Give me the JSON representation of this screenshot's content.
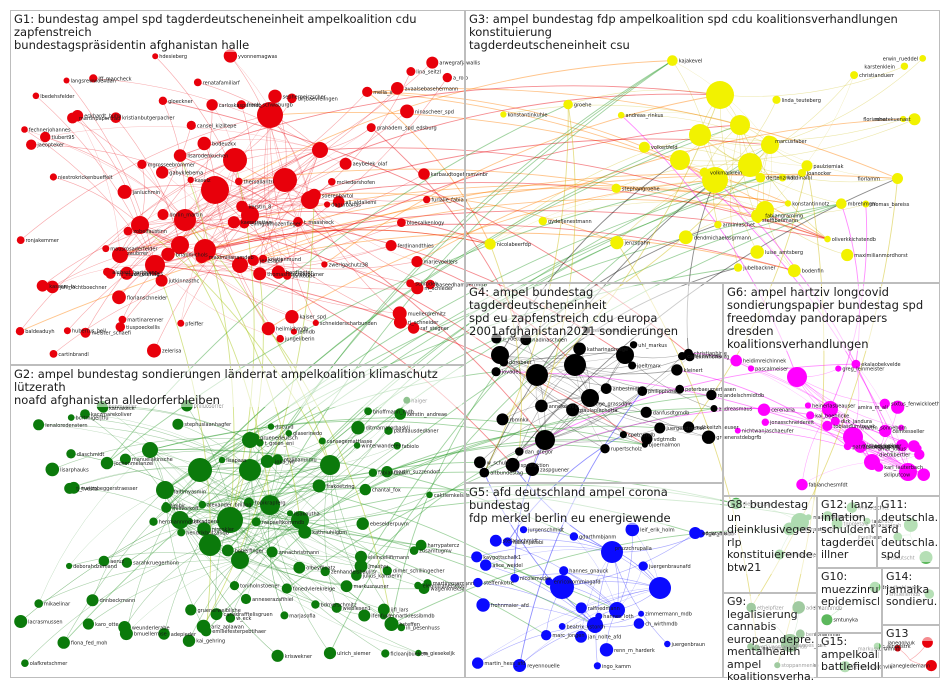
{
  "groups": {
    "g1": {
      "title": "G1: bundestag ampel spd tagderdeutscheneinheit ampelkoalition cdu zapfenstreich\nbundestagspräsidentin afghanistan halle",
      "color": "#e8000b"
    },
    "g2": {
      "title": "G2: ampel bundestag sondierungen länderrat ampelkoalition klimaschutz lützerath\nnoafd afghanistan alledorferbleiben",
      "color": "#0b7a0b"
    },
    "g3": {
      "title": "G3: ampel bundestag fdp ampelkoalition spd cdu koalitionsverhandlungen konstituierung\ntagderdeutscheneinheit csu",
      "color": "#f2f200"
    },
    "g4": {
      "title": "G4: ampel bundestag tagderdeutscheneinheit\nspd eu zapfenstreich cdu europa\n2001afghanistan2021 sondierungen",
      "color": "#000000"
    },
    "g5": {
      "title": "G5: afd deutschland ampel corona bundestag\nfdp merkel berlin eu energiewende",
      "color": "#0a0aff"
    },
    "g6": {
      "title": "G6: ampel hartziv longcovid\nsondierungspapier bundestag spd\nfreedomday pandorapapers dresden\nkoalitionsverhandlungen",
      "color": "#ff00ff"
    },
    "g8": {
      "title": "G8: bundestag\nun\ndieinklusiveges...\nrlp\nkonstituierende...\nbtw21",
      "color": "#4caf50"
    },
    "g9": {
      "title": "G9: legalisierung\ncannabis\neuropeandepre...\nmentalhealth\nampel\nkoalitionsverha...",
      "color": "#2e8b2e"
    },
    "g10": {
      "title": "G10:\nmuezzinruf\nepidemisch...",
      "color": "#5cb85c"
    },
    "g11": {
      "title": "G11:\ndeutschla...\nafd\ndeutschla...\nspd",
      "color": "#5cb85c"
    },
    "g12": {
      "title": "G12: lanz\ninflation\nschuldenb...\ntagderdeu...\nillner",
      "color": "#5cb85c"
    },
    "g13": {
      "title": "G13",
      "color": "#e8000b"
    },
    "g14": {
      "title": "G14:\njamaika\nsondieru...",
      "color": "#5cb85c"
    },
    "g15": {
      "title": "G15:\nampelkoalit...\nbattlefieldb...",
      "color": "#5cb85c"
    }
  },
  "labels": {
    "g1": [
      "baldeaduyh",
      "ml_muentefering",
      "jutkinnasthc",
      "jenzsapd",
      "grahadem_spd_edsburg",
      "zwerlgachutz38",
      "soerenbartol",
      "mella_x",
      "marjevoellers",
      "heilmichmdb",
      "lisarodenkuchen",
      "gloeckner",
      "bodeuzkx",
      "thomashitschlerprimer",
      "tiubert95",
      "thersallantri",
      "lina_seitzl",
      "brianmichols",
      "frank_schwaburgb",
      "mgrosseebrommer",
      "dorlin_martin",
      "tiuspoeckellis",
      "ferdinandthies",
      "kerstin_8",
      "karbaudtogehrsmvinbr",
      "zobelfaustinn",
      "gabyklebema",
      "avaalsebasehermann",
      "niestrokrickenbueffelt",
      "cartinbrandl",
      "dirjbaevielingen",
      "sepherpeirzscher",
      "rj_schneider",
      "schrodeb",
      "fechnerjohannes",
      "ronjakemmer",
      "ali_aldaliemi",
      "martinarenner",
      "pfeiffer",
      "yvonnemagwas",
      "leondb",
      "ninascheer_spd",
      "kristianmund",
      "kristianbutgerpacher",
      "kassem_tv",
      "dagurbahas",
      "hubertus_heil",
      "schneiderscharbunden",
      "muellerdremitz",
      "baseedhampertmdb",
      "dr_pantazis",
      "cansel_kiziltepe",
      "bloecalkenlogy",
      "jankobbe",
      "mcliedershofen",
      "zelerisa",
      "kaiser_spd",
      "mausrosaderfelder",
      "kaerstrotten",
      "furlalie_fabian",
      "carloskasparmdb",
      "evmgrafhozenfleger",
      "aeybelek_olaf",
      "jaeopteker",
      "alebast_hartmann",
      "zaubrrer",
      "johmochtboechner",
      "raf_stegner",
      "arwegrafjawallis",
      "hardtpeter",
      "lbedehsfelder",
      "langsrewwoendan",
      "jungeliberin",
      "eckhardt_huhn",
      "janluchmin",
      "maximilianamdeb",
      "kaselz",
      "florianschneider",
      "meister_schaefi",
      "martinpapertrad",
      "Iff_mancheck",
      "t_maasheck",
      "a_rolo",
      "hdesieberg",
      "renatafamiliarf",
      "m_schleder"
    ],
    "g2": [
      "ariz_aplawan",
      "julius_kanzlerin",
      "milivorkoff",
      "boberfinger",
      "olbeyfiloatz",
      "hsteffen",
      "nirenkler",
      "caktlemkelsda",
      "adepieder",
      "ulrich_siemer",
      "jochenmelanzel",
      "fiona_fed_moh",
      "fonedvlerekreige",
      "emiliefesterpebtihaer",
      "martin_suzzendorf",
      "alexander_brilling",
      "joka_lwl",
      "chantal_fox",
      "paulaausdedlaner",
      "haiger",
      "philuosorrer",
      "fabiolo",
      "eleanoraheiseloer",
      "deborahdzemand",
      "elvincellifirmann",
      "matimbeggerstraesser",
      "harrypatercz",
      "markusrauner",
      "ducuyd",
      "otzlibamnmu",
      "manuelakinsche",
      "marjasofia",
      "kerstin_andreae",
      "gruenerweibliche",
      "ditmarnatorbaskli",
      "w_eck",
      "ijfl_lars",
      "in_pesenhuss",
      "cansegemattiasse",
      "m_giesekeljk",
      "lisarphauks",
      "ficloanjbuekem",
      "kathakeck",
      "gruenedeutsch",
      "lisapaas",
      "lenaloredenstern",
      "carladrafftelisgruen",
      "toniholnstoener",
      "kriswekner",
      "wagenkneksa",
      "winterwanderer",
      "zenhandelsbaulrsr",
      "tobikrapferg",
      "bcrtrnigerjtfu",
      "faltimyasmin",
      "glaserinedo",
      "lacrasmussen",
      "mikaelinar",
      "kai_gehring",
      "olafkretschmer",
      "lisakoutha",
      "dnnbeckmann",
      "weunderlerabe",
      "herrmannmdsch",
      "bmuellerrose",
      "kathriuhilgbm",
      "ifenfuss",
      "martinrosemann",
      "frakoetzing",
      "karo_otte",
      "ebeselderpuvm",
      "bhoffmann_mdb",
      "benmueller",
      "jmastyu",
      "lennartkiessibmdb",
      "raspaeltkornmdb",
      "anneserazafihiel",
      "hendrikbritzandb",
      "bdrnerschmitz",
      "sarahkruegerhonn",
      "zusamtugmv",
      "annachristmann",
      "t_green_eni",
      "tj_tvesta",
      "dimer_schillingecher",
      "timbjr",
      "kaczmarekoliver",
      "stephuslaanhagfer",
      "lexadgeru",
      "fabiandmik",
      "dlaschmidt",
      "aeruz",
      "wieblesen1"
    ],
    "g3": [
      "thomas_bareiss",
      "fabiangramling",
      "jubelbackner",
      "erwin_rueddel",
      "jenzspahn",
      "joanocker",
      "arminlaschet",
      "mbrehmgm",
      "florianher",
      "paulziemiak",
      "konstantinnotz",
      "bodenfin",
      "kardinalbl",
      "dertenzmdb",
      "nicolabeerfdp",
      "renatekuenast",
      "fiorlamm",
      "groehe",
      "kajakevel",
      "oliverkkichstendb",
      "stephangroehe",
      "andreas_rinkus",
      "volkertfeld",
      "volkmarklein",
      "luise_amtsberg",
      "dendmichaelasgrmann",
      "marcusfaber",
      "konstantinkuhle",
      "christianduerr",
      "linda_teuteberg",
      "gydefjenestmann",
      "steffibaumann",
      "maximilianmordhorst",
      "karstenklein"
    ],
    "g4": [
      "altbundestag",
      "annekoenig_",
      "bjoernalmon",
      "rbmnkx",
      "jovade1",
      "juergendrecher",
      "spdfraktion",
      "cpetrymdb",
      "christianhirte",
      "philipphoss",
      "rolandelschmidtdb",
      "uhl_markus",
      "dan_gregor",
      "andreasmaus",
      "mge_grassdgle",
      "rupertscholz",
      "nadinaschoen",
      "katharinadroege",
      "w_schulz",
      "mdbkeitzhaeuser",
      "kleinert",
      "matthiashauer",
      "n_roettgen",
      "dorobaer",
      "joeltmarx",
      "vdgtmdb",
      "cartinewhitaker",
      "anbestmdb",
      "paulaplechotta",
      "peterbaeumerhasen",
      "gruenenstdebgrfb",
      "zaspguener",
      "danfusdtgmdb",
      "ekrmhoffberg"
    ],
    "g5": [
      "jan_nolte_afd",
      "zimmermann_mdb",
      "marc_jongen",
      "frohnmaier_afd",
      "martin_hess_afd",
      "renn_m_harderk",
      "edgar_naujok",
      "beatrix_vstorch",
      "gdarthmbjanm",
      "hannes_gnauck",
      "steffenkotre",
      "juergenbraun",
      "ralfnedmann",
      "fabianjacobi",
      "alice_weidel",
      "reyennouelle",
      "pruzzchrupalla",
      "juergenbraunafd",
      "enricokommingafd",
      "kaygottschalk1",
      "leif_erik_holm",
      "stefanschmidt",
      "ch_wirthmdb",
      "h_kraftmdb",
      "nicolemoder",
      "jurgenschmidt",
      "ingo_kamm",
      "hannes_loth"
    ],
    "g6": [
      "enbhazen",
      "amal_klaus",
      "kai_boehncke",
      "cerenaria",
      "susannefeller",
      "martin_sonneborn",
      "fabianchesmfdt",
      "karl_lauterbach",
      "sixtus_fenwickloeth",
      "nichtwanjaschaeufer",
      "dirk_jandura",
      "jonasschneidereit",
      "greg_leinmeister",
      "cemtesseller",
      "michael_kellner",
      "amira_m_ali",
      "heinerlasbeauser",
      "pascalmeiser",
      "patrapauwerke",
      "heidimreichinnek",
      "skliputcow",
      "dietdibertler",
      "ekalaobekvelde",
      "tobiasdumtrevsk"
    ],
    "g8": [
      "wilfriedoeller",
      "stefamsetlberg",
      "dieinkelusiv",
      "maikstoerig"
    ],
    "g9": [
      "ethelpfizer",
      "johannes_kalk",
      "adelmannmdb",
      "benibhammal",
      "twerkvasmaninkmdb",
      "zavdisbuffer",
      "stoppanmenke"
    ],
    "g10": [
      "dmadbahlmann",
      "smtunyka"
    ],
    "g11": [
      "jhvelheun",
      "maxsantosh",
      "ensikutscht"
    ],
    "g12": [
      "chrrussmax",
      "nnibutschitz",
      "tgpoletaiz",
      "tasbruch"
    ],
    "g13": [
      "markuskurthmdb",
      "janegledemann",
      "janegolyuk"
    ],
    "g14": [
      "smuellerndb"
    ],
    "g15": [
      "pefunderarchvlk",
      "c_aindustrk"
    ]
  }
}
